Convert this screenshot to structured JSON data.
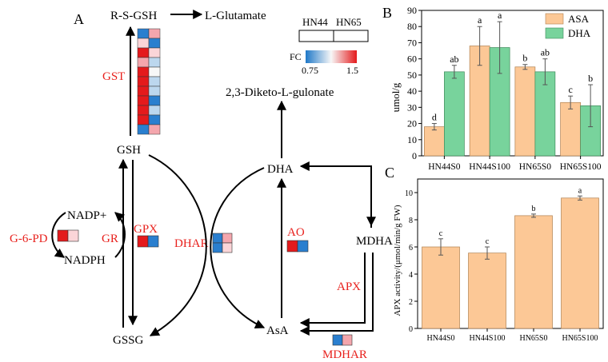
{
  "panel_a": {
    "label": "A",
    "metabolites": {
      "rsgsh": "R-S-GSH",
      "glutamate": "L-Glutamate",
      "gsh": "GSH",
      "gssg": "GSSG",
      "dha": "DHA",
      "diketo": "2,3-Diketo-L-gulonate",
      "mdha": "MDHA",
      "asa": "AsA",
      "nadp": "NADP+",
      "nadph": "NADPH"
    },
    "enzymes": {
      "gst": "GST",
      "gpx": "GPX",
      "gr": "GR",
      "g6pd": "G-6-PD",
      "dhar": "DHAR",
      "ao": "AO",
      "apx": "APX",
      "mdhar": "MDHAR"
    },
    "legend": {
      "col1": "HN44",
      "col2": "HN65",
      "fc_label": "FC",
      "min_label": "0.75",
      "max_label": "1.5"
    },
    "colors": {
      "enzyme_text": "#e8211d",
      "strong_red": "#e41a1c",
      "light_red": "#f4a6ad",
      "pale_red": "#fbd5d8",
      "strong_blue": "#2a7fcf",
      "light_blue": "#bcd7ee",
      "white": "#f7f7f7"
    },
    "heatmaps": {
      "gst_rows": [
        [
          "#2a7fcf",
          "#f4a6ad"
        ],
        [
          "#fbd5d8",
          "#2a7fcf"
        ],
        [
          "#e41a1c",
          "#fbd5d8"
        ],
        [
          "#f4a6ad",
          "#bcd7ee"
        ],
        [
          "#e41a1c",
          "#f7f7f7"
        ],
        [
          "#e41a1c",
          "#bcd7ee"
        ],
        [
          "#e41a1c",
          "#bcd7ee"
        ],
        [
          "#e41a1c",
          "#2a7fcf"
        ],
        [
          "#e41a1c",
          "#bcd7ee"
        ],
        [
          "#e41a1c",
          "#2a7fcf"
        ],
        [
          "#2a7fcf",
          "#f4a6ad"
        ]
      ],
      "gpx": [
        "#e41a1c",
        "#2a7fcf"
      ],
      "g6pd": [
        "#e41a1c",
        "#fbd5d8"
      ],
      "ao": [
        "#e41a1c",
        "#2a7fcf"
      ],
      "mdhar": [
        "#2a7fcf",
        "#f4a6ad"
      ],
      "dhar": [
        [
          "#2a7fcf",
          "#f4a6ad"
        ],
        [
          "#2a7fcf",
          "#fbd5d8"
        ]
      ]
    }
  },
  "panel_b": {
    "label": "B",
    "bar_colors": {
      "ASA": "#fcc896",
      "DHA": "#78d39c"
    },
    "chart_data": {
      "type": "bar",
      "categories": [
        "HN44S0",
        "HN44S100",
        "HN65S0",
        "HN65S100"
      ],
      "series": [
        {
          "name": "ASA",
          "values": [
            18,
            68,
            55,
            33
          ],
          "errors": [
            2,
            12,
            1.5,
            4
          ],
          "letters": [
            "d",
            "a",
            "b",
            "c"
          ]
        },
        {
          "name": "DHA",
          "values": [
            52,
            67,
            52,
            31
          ],
          "errors": [
            4,
            16,
            8,
            13
          ],
          "letters": [
            "ab",
            "a",
            "ab",
            "b"
          ]
        }
      ],
      "ylabel": "umol/g",
      "ylim": [
        0,
        90
      ],
      "yticks": [
        "0",
        "10",
        "20",
        "30",
        "40",
        "50",
        "60",
        "70",
        "80",
        "90"
      ],
      "legend": "top-right"
    }
  },
  "panel_c": {
    "label": "C",
    "bar_color": "#fcc896",
    "chart_data": {
      "type": "bar",
      "categories": [
        "HN44S0",
        "HN44S100",
        "HN65S0",
        "HN65S100"
      ],
      "values": [
        6.0,
        5.55,
        8.3,
        9.6
      ],
      "errors": [
        0.6,
        0.45,
        0.12,
        0.15
      ],
      "letters": [
        "c",
        "c",
        "b",
        "a"
      ],
      "ylabel": "APX activity/(μmol/min/g FW)",
      "ylim": [
        0,
        11
      ],
      "yticks": [
        "0",
        "2",
        "4",
        "6",
        "8",
        "10"
      ]
    }
  }
}
